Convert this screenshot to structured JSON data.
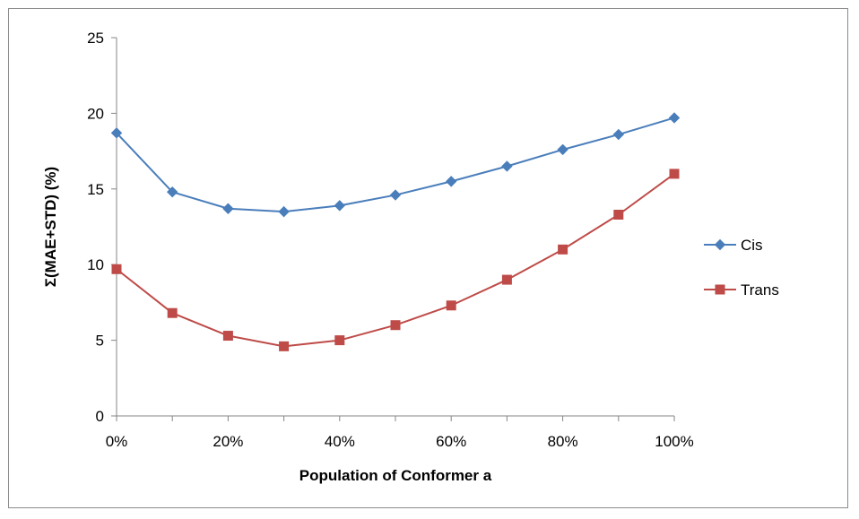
{
  "chart_data": {
    "type": "line",
    "title": "",
    "xlabel": "Population of Conformer a",
    "ylabel": "Σ(MAE+STD)  (%)",
    "x": [
      0,
      10,
      20,
      30,
      40,
      50,
      60,
      70,
      80,
      90,
      100
    ],
    "x_tick_values": [
      0,
      20,
      40,
      60,
      80,
      100
    ],
    "x_tick_labels": [
      "0%",
      "20%",
      "40%",
      "60%",
      "80%",
      "100%"
    ],
    "xlim": [
      0,
      100
    ],
    "ylim": [
      0,
      25
    ],
    "y_tick_values": [
      0,
      5,
      10,
      15,
      20,
      25
    ],
    "y_tick_labels": [
      "0",
      "5",
      "10",
      "15",
      "20",
      "25"
    ],
    "grid": false,
    "legend_position": "right",
    "series": [
      {
        "name": "Cis",
        "color": "#4A7EBB",
        "marker": "diamond",
        "values": [
          18.7,
          14.8,
          13.7,
          13.5,
          13.9,
          14.6,
          15.5,
          16.5,
          17.6,
          18.6,
          19.7
        ]
      },
      {
        "name": "Trans",
        "color": "#BE4B48",
        "marker": "square",
        "values": [
          9.7,
          6.8,
          5.3,
          4.6,
          5.0,
          6.0,
          7.3,
          9.0,
          11.0,
          13.3,
          16.0
        ]
      }
    ]
  }
}
